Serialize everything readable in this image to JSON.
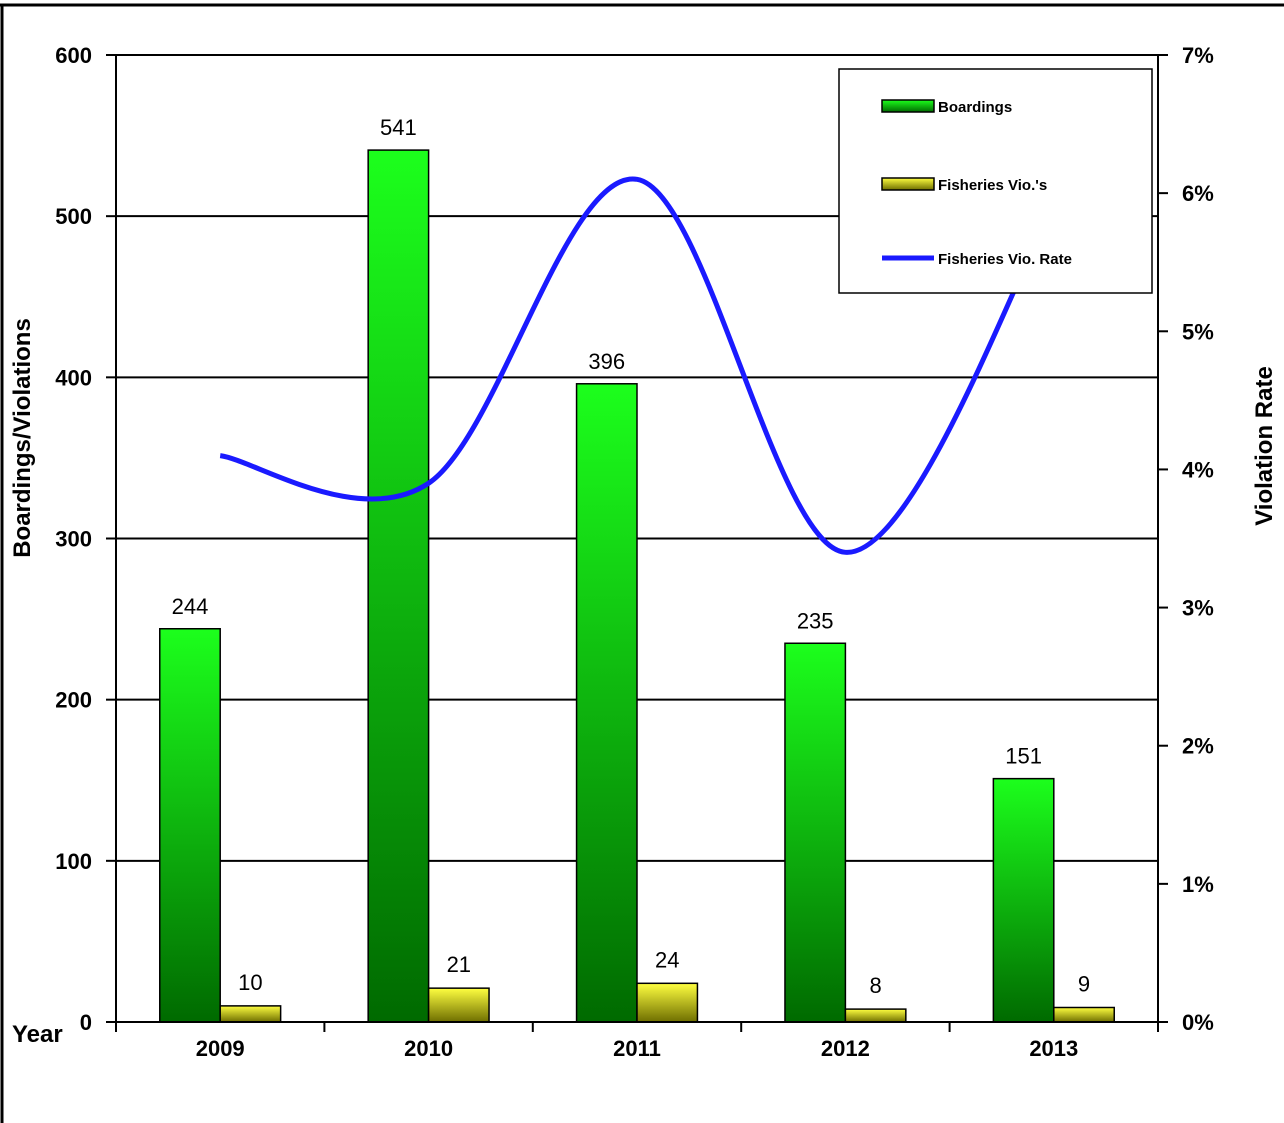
{
  "chart_data": {
    "type": "bar",
    "categories": [
      "2009",
      "2010",
      "2011",
      "2012",
      "2013"
    ],
    "series": [
      {
        "name": "Boardings",
        "kind": "bar",
        "axis": "left",
        "color": "#18d818",
        "values": [
          244,
          541,
          396,
          235,
          151
        ]
      },
      {
        "name": "Fisheries Vio.'s",
        "kind": "bar",
        "axis": "left",
        "color": "#d8d800",
        "values": [
          10,
          21,
          24,
          8,
          9
        ]
      },
      {
        "name": "Fisheries Vio. Rate",
        "kind": "line",
        "axis": "right",
        "color": "#1a1aff",
        "values": [
          0.041,
          0.039,
          0.061,
          0.034,
          0.059
        ]
      }
    ],
    "xlabel": "Year",
    "ylabel": "Boardings/Violations",
    "y2label": "Violation Rate",
    "ylim": [
      0,
      600
    ],
    "y2lim": [
      0,
      0.07
    ],
    "yticks": [
      "0",
      "100",
      "200",
      "300",
      "400",
      "500",
      "600"
    ],
    "y2ticks": [
      "0%",
      "1%",
      "2%",
      "3%",
      "4%",
      "5%",
      "6%",
      "7%"
    ],
    "data_labels": {
      "Boardings": [
        "244",
        "541",
        "396",
        "235",
        "151"
      ],
      "Fisheries Vio.'s": [
        "10",
        "21",
        "24",
        "8",
        "9"
      ]
    },
    "grid": true,
    "legend": "top-right"
  }
}
